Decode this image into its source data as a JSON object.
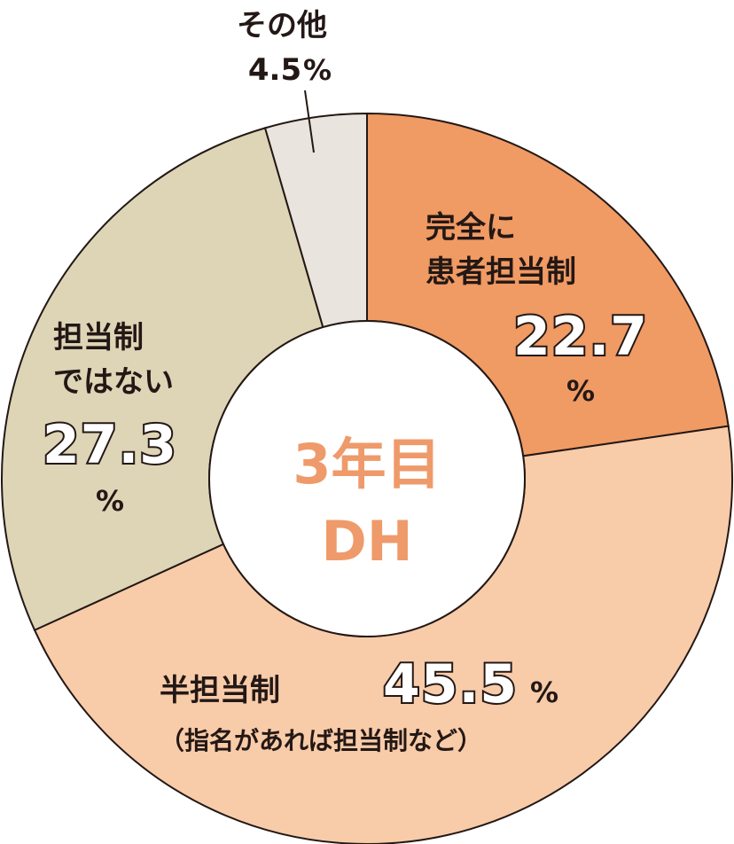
{
  "chart_data": {
    "type": "pie",
    "title": "3年目",
    "subtitle": "DH",
    "slices": [
      {
        "label_line1": "完全に",
        "label_line2": "患者担当制",
        "value": 22.7,
        "value_text": "22.7",
        "unit": "%",
        "color": "#f09a64"
      },
      {
        "label_line1": "半担当制",
        "label_line2": "（指名があれば担当制など）",
        "value": 45.5,
        "value_text": "45.5",
        "unit": "%",
        "color": "#f8cba9"
      },
      {
        "label_line1": "担当制",
        "label_line2": "ではない",
        "value": 27.3,
        "value_text": "27.3",
        "unit": "%",
        "color": "#ddd5b6"
      },
      {
        "label_line1": "その他",
        "label_line2": "",
        "value": 4.5,
        "value_text": "4.5",
        "unit": "%",
        "color": "#e9e4dd"
      }
    ]
  }
}
